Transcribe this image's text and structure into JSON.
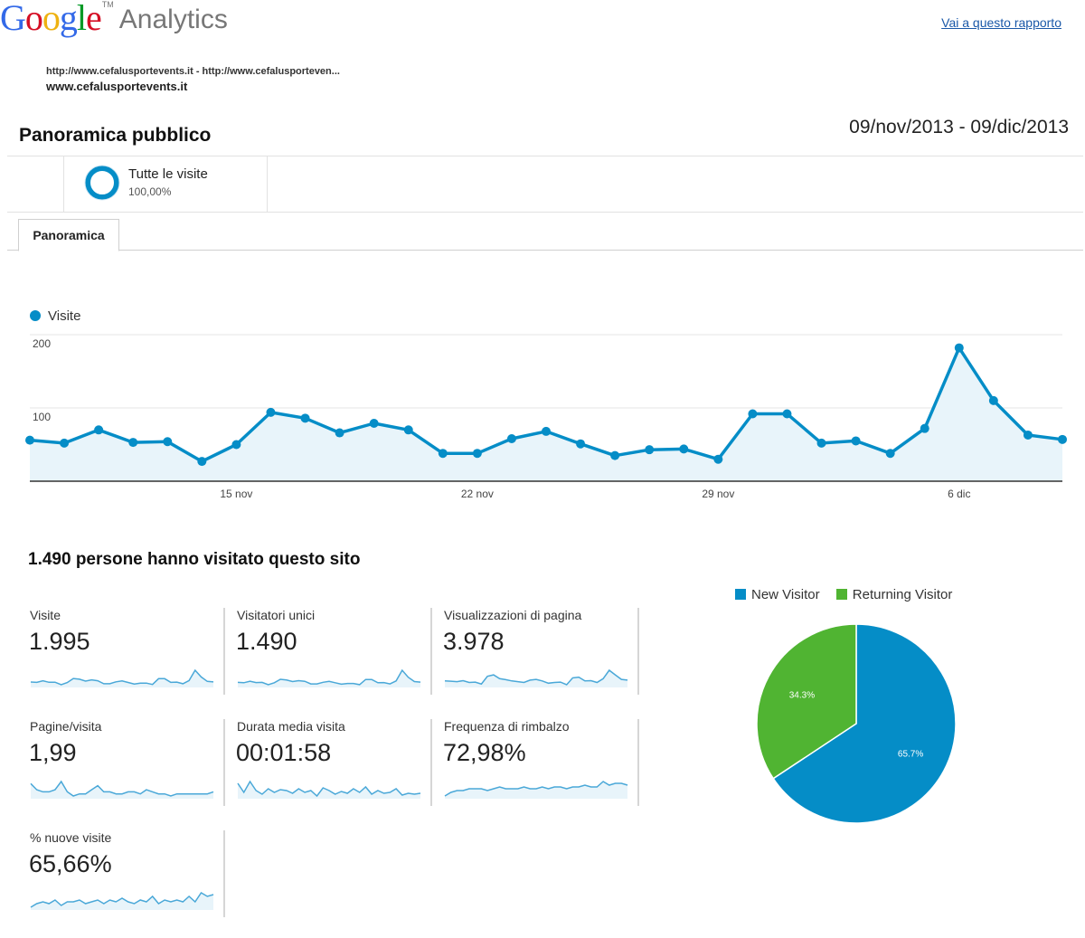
{
  "header": {
    "logo_letters": [
      "G",
      "o",
      "o",
      "g",
      "l",
      "e"
    ],
    "logo_colors": [
      "#3369e8",
      "#d50f25",
      "#eeb211",
      "#3369e8",
      "#009925",
      "#d50f25"
    ],
    "logo_trademark": "TM",
    "logo_product": "Analytics",
    "report_link": "Vai a questo rapporto",
    "url_line": "http://www.cefalusportevents.it - http://www.cefalusporteven...",
    "site_name": "www.cefalusportevents.it",
    "page_title": "Panoramica pubblico",
    "date_range": "09/nov/2013 - 09/dic/2013"
  },
  "segment": {
    "name": "Tutte le visite",
    "percent": "100,00%",
    "icon": "donut-ring-icon",
    "color": "#058dc7"
  },
  "tabs": [
    {
      "label": "Panoramica",
      "active": true
    }
  ],
  "chart_data": [
    {
      "type": "area",
      "legend": "Visite",
      "color": "#058dc7",
      "fill": "#e8f4fa",
      "ylim": [
        0,
        200
      ],
      "y_ticks": [
        {
          "value": 100,
          "label": "100"
        },
        {
          "value": 200,
          "label": "200"
        }
      ],
      "x_ticks": [
        {
          "index": 6,
          "label": "15 nov"
        },
        {
          "index": 13,
          "label": "22 nov"
        },
        {
          "index": 20,
          "label": "29 nov"
        },
        {
          "index": 27,
          "label": "6 dic"
        }
      ],
      "x": [
        "09/11",
        "10/11",
        "11/11",
        "12/11",
        "13/11",
        "14/11",
        "15/11",
        "16/11",
        "17/11",
        "18/11",
        "19/11",
        "20/11",
        "21/11",
        "22/11",
        "23/11",
        "24/11",
        "25/11",
        "26/11",
        "27/11",
        "28/11",
        "29/11",
        "30/11",
        "01/12",
        "02/12",
        "03/12",
        "04/12",
        "05/12",
        "06/12",
        "07/12",
        "08/12",
        "09/12"
      ],
      "series": [
        {
          "name": "Visite",
          "values": [
            56,
            52,
            70,
            53,
            54,
            27,
            50,
            94,
            86,
            66,
            79,
            70,
            38,
            38,
            58,
            68,
            51,
            35,
            43,
            44,
            30,
            92,
            92,
            52,
            55,
            38,
            72,
            182,
            110,
            63,
            57
          ]
        }
      ]
    },
    {
      "type": "pie",
      "legend_position": "top",
      "slices": [
        {
          "name": "New Visitor",
          "value": 65.7,
          "label": "65.7%",
          "color": "#058dc7"
        },
        {
          "name": "Returning Visitor",
          "value": 34.3,
          "label": "34.3%",
          "color": "#50b432"
        }
      ]
    }
  ],
  "summary": "1.490 persone hanno visitato questo sito",
  "metrics": [
    {
      "label": "Visite",
      "value": "1.995",
      "spark": [
        56,
        52,
        70,
        53,
        54,
        27,
        50,
        94,
        86,
        66,
        79,
        70,
        38,
        38,
        58,
        68,
        51,
        35,
        43,
        44,
        30,
        92,
        92,
        52,
        55,
        38,
        72,
        182,
        110,
        63,
        57
      ]
    },
    {
      "label": "Visitatori unici",
      "value": "1.490",
      "spark": [
        45,
        42,
        55,
        44,
        45,
        25,
        42,
        72,
        66,
        52,
        60,
        55,
        32,
        32,
        46,
        54,
        42,
        30,
        36,
        36,
        26,
        70,
        70,
        42,
        44,
        32,
        58,
        150,
        90,
        52,
        48
      ]
    },
    {
      "label": "Visualizzazioni di pagina",
      "value": "3.978",
      "spark": [
        80,
        78,
        75,
        82,
        70,
        72,
        60,
        110,
        120,
        95,
        88,
        80,
        75,
        70,
        85,
        90,
        80,
        65,
        70,
        72,
        55,
        100,
        105,
        80,
        82,
        70,
        95,
        150,
        120,
        90,
        85
      ]
    },
    {
      "label": "Pagine/visita",
      "value": "1,99",
      "spark": [
        2.4,
        2.1,
        2.0,
        2.0,
        2.1,
        2.5,
        2.0,
        1.8,
        1.9,
        1.9,
        2.1,
        2.3,
        2.0,
        2.0,
        1.9,
        1.9,
        2.0,
        2.0,
        1.9,
        2.1,
        2.0,
        1.9,
        1.9,
        1.8,
        1.9,
        1.9,
        1.9,
        1.9,
        1.9,
        1.9,
        2.0
      ]
    },
    {
      "label": "Durata media visita",
      "value": "00:01:58",
      "spark": [
        150,
        100,
        160,
        110,
        90,
        120,
        100,
        115,
        110,
        95,
        120,
        100,
        110,
        80,
        125,
        110,
        90,
        105,
        95,
        120,
        100,
        130,
        90,
        110,
        95,
        100,
        120,
        85,
        95,
        90,
        95
      ]
    },
    {
      "label": "Frequenza di rimbalzo",
      "value": "72,98%",
      "spark": [
        68,
        70,
        71,
        71,
        72,
        72,
        72,
        71,
        72,
        73,
        72,
        72,
        72,
        73,
        72,
        72,
        73,
        72,
        73,
        73,
        72,
        73,
        73,
        74,
        73,
        73,
        76,
        74,
        75,
        75,
        74
      ]
    },
    {
      "label": "% nuove visite",
      "value": "65,66%",
      "spark": [
        62,
        64,
        65,
        64,
        66,
        63,
        65,
        65,
        66,
        64,
        65,
        66,
        64,
        66,
        65,
        67,
        65,
        64,
        66,
        65,
        68,
        64,
        66,
        65,
        66,
        65,
        68,
        65,
        70,
        68,
        69
      ]
    }
  ]
}
